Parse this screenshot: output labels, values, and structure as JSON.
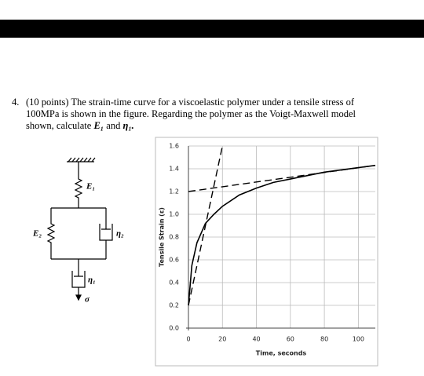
{
  "question": {
    "number": "4.",
    "lines": [
      "(10 points) The strain-time curve for a viscoelastic polymer under a tensile stress of",
      "100MPa is shown in the figure.  Regarding the polymer as the Voigt-Maxwell model",
      "shown, calculate"
    ],
    "targets": [
      "E₁",
      "and",
      "η₁."
    ]
  },
  "diagram": {
    "labels": [
      "E₁",
      "E₂",
      "η₂",
      "η₁",
      "σ"
    ]
  },
  "chart_data": {
    "type": "line",
    "xlabel": "Time, seconds",
    "ylabel": "Tensile Strain (ε)",
    "xlim": [
      0,
      110
    ],
    "ylim": [
      0,
      1.6
    ],
    "xticks": [
      0,
      20,
      40,
      60,
      80,
      100
    ],
    "yticks": [
      {
        "value": 0,
        "label": "0.0"
      },
      0.2,
      0.4,
      0.6,
      0.8,
      {
        "value": 1,
        "label": "1.0"
      },
      1.2,
      1.4,
      1.6
    ],
    "grid": true,
    "series": [
      {
        "color": "#000000",
        "x": [
          0,
          2,
          5,
          10,
          15,
          20,
          30,
          40,
          50,
          60,
          70,
          80,
          90,
          100,
          110
        ],
        "values": [
          0.2,
          0.55,
          0.75,
          0.92,
          1.0,
          1.07,
          1.17,
          1.23,
          1.28,
          1.31,
          1.34,
          1.37,
          1.39,
          1.41,
          1.43
        ]
      },
      {
        "color": "#000000",
        "dash": true,
        "x": [
          0,
          20
        ],
        "values": [
          0.2,
          1.6
        ]
      },
      {
        "color": "#000000",
        "dash": true,
        "x": [
          0,
          110
        ],
        "values": [
          1.2,
          1.43
        ]
      }
    ]
  }
}
